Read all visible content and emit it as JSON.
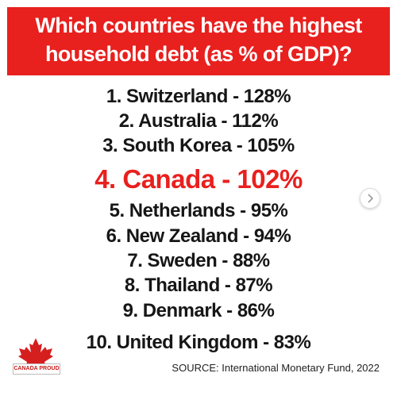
{
  "header": {
    "title_lines": [
      "Which countries have the highest",
      "household debt (as % of GDP)?"
    ]
  },
  "list": {
    "items": [
      "1. Switzerland - 128%",
      "2. Australia - 112%",
      "3. South Korea - 105%",
      "4. Canada - 102%",
      "5. Netherlands - 95%",
      "6. New Zealand - 94%",
      "7. Sweden - 88%",
      "8. Thailand - 87%",
      "9. Denmark - 86%",
      "10. United Kingdom - 83%"
    ]
  },
  "logo": {
    "text": "CANADA PROUD"
  },
  "footer": {
    "source": "SOURCE: International Monetary Fund, 2022"
  }
}
